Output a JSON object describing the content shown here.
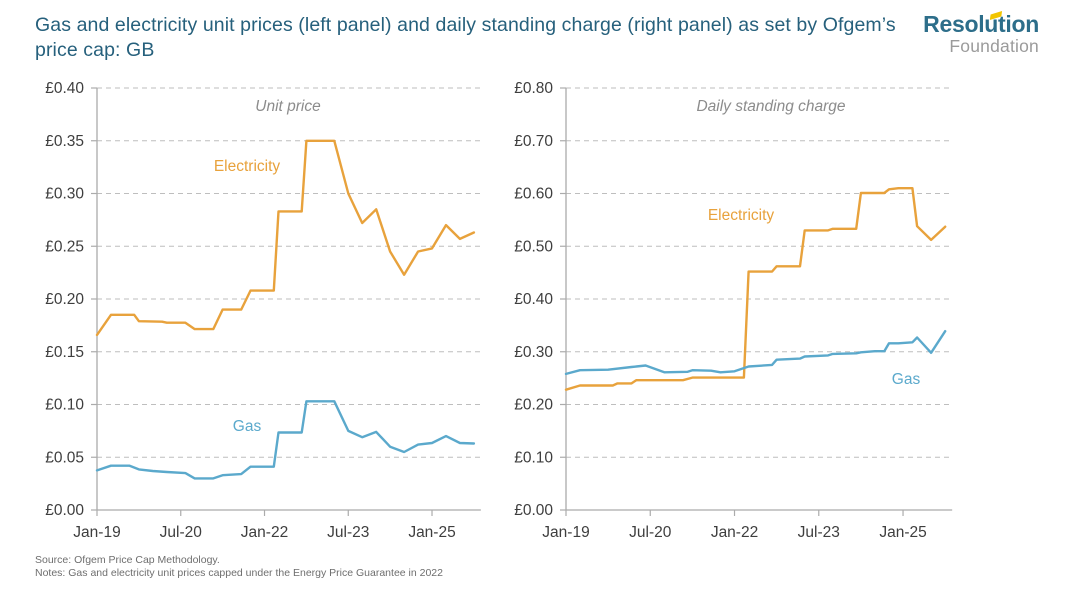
{
  "header": {
    "title": "Gas and electricity unit prices (left panel) and daily standing charge (right panel) as set by Ofgem’s price cap: GB",
    "logo": {
      "line1": "Resolution",
      "line2": "Foundation"
    }
  },
  "footer": {
    "source": "Source: Ofgem Price Cap Methodology.",
    "notes": "Notes: Gas and electricity unit prices capped under the Energy Price Guarantee in 2022"
  },
  "colors": {
    "electricity": "#E8A23C",
    "gas": "#5BA9CC",
    "title_teal": "#26607C",
    "grid": "#BEBEBE",
    "axis": "#ABABAB",
    "tick_label": "#3E3E3E",
    "panel_title": "#8C8C8C",
    "footer_gray": "#6E6E6E",
    "logo_teal": "#2D6E8A",
    "logo_gray": "#9B9B9B",
    "logo_yellow": "#F2C500"
  },
  "chart_data": [
    {
      "type": "line",
      "title": "Unit price",
      "x_tick_labels": [
        "Jan-19",
        "Jul-20",
        "Jan-22",
        "Jul-23",
        "Jan-25"
      ],
      "x_tick_months": [
        0,
        18,
        36,
        54,
        72
      ],
      "x_range_months": [
        0,
        82.5
      ],
      "ylim": [
        0,
        0.4
      ],
      "y_step": 0.05,
      "y_tick_labels": [
        "£0.00",
        "£0.05",
        "£0.10",
        "£0.15",
        "£0.20",
        "£0.25",
        "£0.30",
        "£0.35",
        "£0.40"
      ],
      "grid": "horizontal-dashed",
      "legend": "inline-labels",
      "series": [
        {
          "name": "Electricity",
          "color": "#E8A23C",
          "points": [
            [
              0,
              0.166
            ],
            [
              3,
              0.185
            ],
            [
              8,
              0.185
            ],
            [
              9,
              0.179
            ],
            [
              14,
              0.1785
            ],
            [
              15,
              0.1775
            ],
            [
              19,
              0.1775
            ],
            [
              21,
              0.1715
            ],
            [
              25,
              0.1715
            ],
            [
              27,
              0.19
            ],
            [
              31,
              0.19
            ],
            [
              33,
              0.208
            ],
            [
              38,
              0.208
            ],
            [
              39,
              0.283
            ],
            [
              44,
              0.283
            ],
            [
              45,
              0.35
            ],
            [
              51,
              0.35
            ],
            [
              54,
              0.3
            ],
            [
              57,
              0.272
            ],
            [
              60,
              0.285
            ],
            [
              63,
              0.245
            ],
            [
              66,
              0.223
            ],
            [
              69,
              0.245
            ],
            [
              72,
              0.248
            ],
            [
              75,
              0.27
            ],
            [
              78,
              0.257
            ],
            [
              81,
              0.263
            ]
          ]
        },
        {
          "name": "Gas",
          "color": "#5BA9CC",
          "points": [
            [
              0,
              0.0375
            ],
            [
              3,
              0.042
            ],
            [
              7,
              0.042
            ],
            [
              9,
              0.0385
            ],
            [
              12,
              0.037
            ],
            [
              15,
              0.036
            ],
            [
              19,
              0.035
            ],
            [
              21,
              0.03
            ],
            [
              25,
              0.03
            ],
            [
              27,
              0.033
            ],
            [
              31,
              0.034
            ],
            [
              33,
              0.041
            ],
            [
              38,
              0.041
            ],
            [
              39,
              0.0735
            ],
            [
              44,
              0.0735
            ],
            [
              45,
              0.103
            ],
            [
              51,
              0.103
            ],
            [
              54,
              0.075
            ],
            [
              57,
              0.069
            ],
            [
              60,
              0.074
            ],
            [
              63,
              0.06
            ],
            [
              66,
              0.055
            ],
            [
              69,
              0.062
            ],
            [
              72,
              0.0635
            ],
            [
              75,
              0.07
            ],
            [
              78,
              0.0635
            ],
            [
              81,
              0.063
            ]
          ]
        }
      ]
    },
    {
      "type": "line",
      "title": "Daily standing charge",
      "x_tick_labels": [
        "Jan-19",
        "Jul-20",
        "Jan-22",
        "Jul-23",
        "Jan-25"
      ],
      "x_tick_months": [
        0,
        18,
        36,
        54,
        72
      ],
      "x_range_months": [
        0,
        82.5
      ],
      "ylim": [
        0,
        0.8
      ],
      "y_step": 0.1,
      "y_tick_labels": [
        "£0.00",
        "£0.10",
        "£0.20",
        "£0.30",
        "£0.40",
        "£0.50",
        "£0.60",
        "£0.70",
        "£0.80"
      ],
      "grid": "horizontal-dashed",
      "legend": "inline-labels",
      "series": [
        {
          "name": "Electricity",
          "color": "#E8A23C",
          "points": [
            [
              0,
              0.228
            ],
            [
              3,
              0.236
            ],
            [
              10,
              0.236
            ],
            [
              11,
              0.24
            ],
            [
              14,
              0.24
            ],
            [
              15,
              0.246
            ],
            [
              25,
              0.246
            ],
            [
              27,
              0.251
            ],
            [
              38,
              0.251
            ],
            [
              39,
              0.452
            ],
            [
              44,
              0.452
            ],
            [
              45,
              0.462
            ],
            [
              50,
              0.462
            ],
            [
              51,
              0.53
            ],
            [
              56,
              0.53
            ],
            [
              57,
              0.533
            ],
            [
              62,
              0.533
            ],
            [
              63,
              0.601
            ],
            [
              68,
              0.601
            ],
            [
              69,
              0.608
            ],
            [
              71,
              0.61
            ],
            [
              74,
              0.61
            ],
            [
              75,
              0.538
            ],
            [
              78,
              0.512
            ],
            [
              81,
              0.537
            ]
          ]
        },
        {
          "name": "Gas",
          "color": "#5BA9CC",
          "points": [
            [
              0,
              0.258
            ],
            [
              3,
              0.265
            ],
            [
              9,
              0.266
            ],
            [
              14,
              0.271
            ],
            [
              17,
              0.274
            ],
            [
              21,
              0.261
            ],
            [
              26,
              0.262
            ],
            [
              27,
              0.265
            ],
            [
              31,
              0.264
            ],
            [
              33,
              0.261
            ],
            [
              36,
              0.263
            ],
            [
              39,
              0.272
            ],
            [
              44,
              0.275
            ],
            [
              45,
              0.285
            ],
            [
              50,
              0.287
            ],
            [
              51,
              0.291
            ],
            [
              56,
              0.293
            ],
            [
              57,
              0.296
            ],
            [
              62,
              0.297
            ],
            [
              63,
              0.299
            ],
            [
              66,
              0.301
            ],
            [
              68,
              0.301
            ],
            [
              69,
              0.316
            ],
            [
              71,
              0.316
            ],
            [
              74,
              0.318
            ],
            [
              75,
              0.327
            ],
            [
              78,
              0.298
            ],
            [
              81,
              0.339
            ]
          ]
        }
      ]
    }
  ]
}
